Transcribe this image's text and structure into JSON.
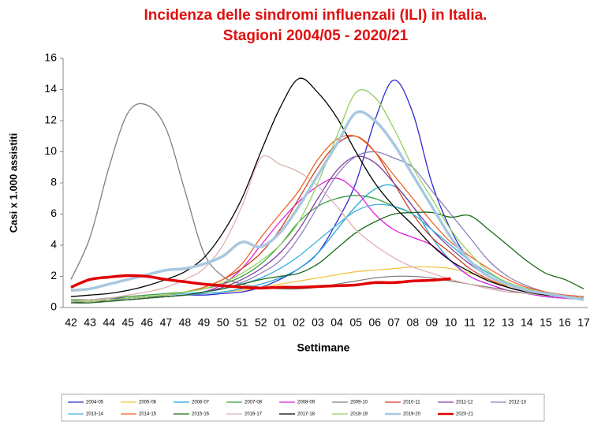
{
  "chart_data": {
    "type": "line",
    "title": [
      "Incidenza delle sindromi influenzali (ILI) in Italia.",
      "Stagioni 2004/05 - 2020/21"
    ],
    "x_label": "Settimane",
    "y_label": "Casi x 1.000 assistiti",
    "categories": [
      "42",
      "43",
      "44",
      "45",
      "46",
      "47",
      "48",
      "49",
      "50",
      "51",
      "52",
      "01",
      "02",
      "03",
      "04",
      "05",
      "06",
      "07",
      "08",
      "09",
      "10",
      "11",
      "12",
      "13",
      "14",
      "15",
      "16",
      "17"
    ],
    "ylim": [
      0,
      16
    ],
    "yticks": [
      0,
      2,
      4,
      6,
      8,
      10,
      12,
      14,
      16
    ],
    "grid": false,
    "legend": "bottom",
    "series": [
      {
        "name": "2004-05",
        "color": "#2a2ad0",
        "line_width": 1.3,
        "values": [
          0.5,
          0.5,
          0.6,
          0.6,
          0.7,
          0.7,
          0.8,
          0.8,
          0.9,
          1.0,
          1.3,
          1.8,
          2.5,
          3.5,
          5.5,
          8,
          12,
          14.6,
          12.5,
          8,
          5,
          3,
          2,
          1.3,
          1,
          0.8,
          0.7,
          0.6
        ]
      },
      {
        "name": "2005-06",
        "color": "#f5c242",
        "line_width": 1.3,
        "values": [
          0.4,
          0.4,
          0.5,
          0.5,
          0.6,
          0.7,
          0.8,
          0.9,
          1.0,
          1.1,
          1.3,
          1.5,
          1.7,
          1.9,
          2.1,
          2.3,
          2.4,
          2.5,
          2.6,
          2.6,
          2.5,
          2.2,
          1.8,
          1.4,
          1.1,
          0.9,
          0.7,
          0.6
        ]
      },
      {
        "name": "2006-07",
        "color": "#22a8d8",
        "line_width": 1.3,
        "values": [
          0.4,
          0.4,
          0.5,
          0.5,
          0.6,
          0.7,
          0.8,
          0.9,
          1.0,
          1.2,
          1.5,
          1.9,
          2.5,
          3.5,
          5,
          6.5,
          7.6,
          7.8,
          6.5,
          4.5,
          3,
          2,
          1.5,
          1.1,
          0.9,
          0.7,
          0.6,
          0.5
        ]
      },
      {
        "name": "2007-08",
        "color": "#3aa040",
        "line_width": 1.3,
        "values": [
          0.5,
          0.5,
          0.6,
          0.7,
          0.8,
          0.9,
          1.0,
          1.2,
          1.5,
          2,
          2.8,
          4,
          5.5,
          6.5,
          7,
          7.2,
          7,
          6.5,
          6,
          5,
          4,
          3,
          2.2,
          1.6,
          1.2,
          0.9,
          0.7,
          0.6
        ]
      },
      {
        "name": "2008-09",
        "color": "#e020e0",
        "line_width": 1.3,
        "values": [
          0.4,
          0.4,
          0.5,
          0.5,
          0.6,
          0.7,
          0.8,
          1.0,
          1.5,
          2.5,
          4,
          5.5,
          6.8,
          7.8,
          8.3,
          7.5,
          6,
          5,
          4.5,
          4,
          3,
          2,
          1.5,
          1.1,
          0.9,
          0.7,
          0.6,
          0.5
        ]
      },
      {
        "name": "2009-10",
        "color": "#808080",
        "line_width": 1.3,
        "values": [
          1.8,
          4.5,
          9,
          12.5,
          13,
          11.5,
          7.5,
          3.5,
          2,
          1.5,
          1.3,
          1.2,
          1.2,
          1.3,
          1.5,
          1.7,
          1.9,
          2,
          2,
          1.9,
          1.7,
          1.5,
          1.3,
          1.1,
          0.9,
          0.8,
          0.7,
          0.6
        ]
      },
      {
        "name": "2010-11",
        "color": "#d04020",
        "line_width": 1.3,
        "values": [
          0.4,
          0.4,
          0.5,
          0.6,
          0.7,
          0.8,
          1.0,
          1.3,
          1.8,
          2.5,
          3.5,
          5,
          7,
          9,
          10.5,
          11,
          10,
          8,
          6,
          4.5,
          3.5,
          2.5,
          1.8,
          1.3,
          1,
          0.8,
          0.7,
          0.6
        ]
      },
      {
        "name": "2011-12",
        "color": "#8040a0",
        "line_width": 1.3,
        "values": [
          0.3,
          0.4,
          0.4,
          0.5,
          0.6,
          0.7,
          0.8,
          1.0,
          1.3,
          1.8,
          2.5,
          3.5,
          5,
          7,
          8.8,
          9.7,
          9.3,
          8,
          6.5,
          5,
          3.8,
          2.8,
          2,
          1.5,
          1.1,
          0.9,
          0.7,
          0.6
        ]
      },
      {
        "name": "2012-13",
        "color": "#9080c0",
        "line_width": 1.3,
        "values": [
          0.4,
          0.4,
          0.5,
          0.5,
          0.6,
          0.7,
          0.8,
          1.0,
          1.2,
          1.6,
          2.2,
          3,
          4.5,
          6.5,
          8.5,
          9.7,
          10,
          9.6,
          9,
          7.5,
          6,
          4.5,
          3,
          2,
          1.4,
          1,
          0.8,
          0.7
        ]
      },
      {
        "name": "2013-14",
        "color": "#40b0e0",
        "line_width": 1.3,
        "values": [
          0.4,
          0.4,
          0.5,
          0.6,
          0.7,
          0.8,
          0.9,
          1.0,
          1.2,
          1.5,
          1.9,
          2.5,
          3.3,
          4.3,
          5.3,
          6.2,
          6.6,
          6.5,
          6,
          5,
          4,
          3,
          2.2,
          1.6,
          1.2,
          0.9,
          0.7,
          0.6
        ]
      },
      {
        "name": "2014-15",
        "color": "#f06020",
        "line_width": 1.3,
        "values": [
          0.4,
          0.4,
          0.5,
          0.6,
          0.7,
          0.8,
          1.0,
          1.3,
          1.8,
          2.8,
          4.5,
          6,
          7.5,
          9.5,
          10.8,
          11,
          10,
          8.5,
          7,
          5.5,
          4.2,
          3.3,
          2.5,
          1.8,
          1.3,
          1,
          0.8,
          0.7
        ]
      },
      {
        "name": "2015-16",
        "color": "#1a6a1a",
        "line_width": 1.3,
        "values": [
          0.3,
          0.3,
          0.4,
          0.5,
          0.6,
          0.7,
          0.8,
          1.0,
          1.2,
          1.5,
          1.8,
          2.0,
          2.2,
          2.8,
          3.8,
          4.8,
          5.5,
          6,
          6.1,
          6.1,
          5.8,
          5.9,
          5,
          4,
          3,
          2.2,
          1.8,
          1.2
        ]
      },
      {
        "name": "2016-17",
        "color": "#e0b0b0",
        "line_width": 1.3,
        "values": [
          0.4,
          0.5,
          0.6,
          0.8,
          1.0,
          1.3,
          1.8,
          2.5,
          4,
          6.5,
          9.6,
          9.2,
          8.7,
          7.8,
          6.5,
          5,
          4,
          3.2,
          2.6,
          2.2,
          1.8,
          1.5,
          1.2,
          1,
          0.9,
          0.8,
          0.7,
          0.6
        ]
      },
      {
        "name": "2017-18",
        "color": "#000000",
        "line_width": 1.3,
        "values": [
          0.7,
          0.8,
          0.9,
          1.1,
          1.4,
          1.8,
          2.3,
          3.2,
          4.8,
          7,
          10,
          12.8,
          14.7,
          13.8,
          12.2,
          10,
          8,
          6.5,
          5.3,
          4,
          3,
          2.3,
          1.7,
          1.3,
          1,
          0.8,
          0.7,
          0.6
        ]
      },
      {
        "name": "2018-19",
        "color": "#90d060",
        "line_width": 1.3,
        "values": [
          0.4,
          0.4,
          0.5,
          0.6,
          0.7,
          0.8,
          1.0,
          1.2,
          1.6,
          2.2,
          3,
          4,
          5.5,
          8,
          11,
          13.8,
          13.5,
          11.5,
          9,
          7,
          5,
          3.5,
          2.3,
          1.6,
          1.2,
          0.9,
          0.7,
          0.6
        ]
      },
      {
        "name": "2019-20",
        "color": "#a8c8e0",
        "line_width": 3.5,
        "values": [
          1.1,
          1.2,
          1.5,
          1.8,
          2.1,
          2.4,
          2.5,
          2.8,
          3.3,
          4.2,
          3.9,
          4.8,
          6.5,
          8.5,
          10.5,
          12.5,
          12,
          10.5,
          8.5,
          6.5,
          4.5,
          3,
          2,
          1.5,
          1.1,
          0.9,
          0.7,
          0.5
        ]
      },
      {
        "name": "2020-21",
        "color": "#e00000",
        "line_width": 3.5,
        "values": [
          1.3,
          1.8,
          1.95,
          2.05,
          2.0,
          1.8,
          1.65,
          1.5,
          1.4,
          1.3,
          1.25,
          1.3,
          1.3,
          1.35,
          1.4,
          1.45,
          1.6,
          1.6,
          1.7,
          1.75,
          1.85,
          null,
          null,
          null,
          null,
          null,
          null,
          null
        ]
      }
    ]
  }
}
